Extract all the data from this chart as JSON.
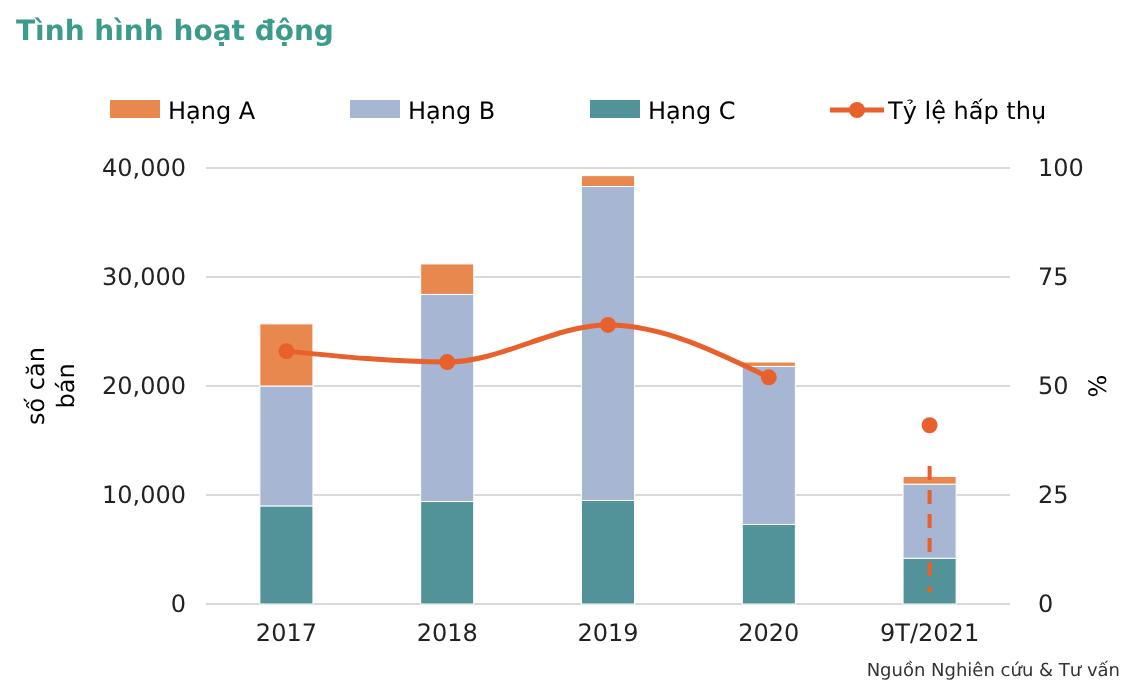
{
  "chart_data": {
    "type": "bar",
    "title": "Tình hình hoạt động",
    "categories": [
      "2017",
      "2018",
      "2019",
      "2020",
      "9T/2021"
    ],
    "stacked": true,
    "series": [
      {
        "name": "Hạng C",
        "color": "#52939a",
        "values": [
          9000,
          9400,
          9500,
          7300,
          4200
        ]
      },
      {
        "name": "Hạng B",
        "color": "#a6b6d3",
        "values": [
          11000,
          19000,
          28800,
          14500,
          6800
        ]
      },
      {
        "name": "Hạng A",
        "color": "#e8884f",
        "values": [
          5700,
          2800,
          1000,
          400,
          700
        ]
      },
      {
        "name": "Tỷ lệ hấp thụ",
        "type": "line",
        "axis": "y2",
        "color": "#e8602c",
        "marker": "circle",
        "values": [
          58,
          55.5,
          64,
          52,
          null
        ]
      },
      {
        "type": "scatter",
        "axis": "y2",
        "color": "#e8602c",
        "marker": "circle",
        "values": [
          null,
          null,
          null,
          null,
          41
        ]
      }
    ],
    "ylabel": "số căn bán",
    "y2label": "%",
    "ylim": [
      0,
      40000
    ],
    "yticks": [
      {
        "value": 0,
        "label": "0"
      },
      {
        "value": 10000,
        "label": "10,000"
      },
      {
        "value": 20000,
        "label": "20,000"
      },
      {
        "value": 30000,
        "label": "30,000"
      },
      {
        "value": 40000,
        "label": "40,000"
      }
    ],
    "y2lim": [
      0,
      100
    ],
    "y2ticks": [
      0,
      25,
      50,
      75,
      100
    ],
    "grid": "y",
    "legend": "top",
    "annotations": [
      "Nguồn Nghiên cứu & Tư vấn"
    ]
  }
}
